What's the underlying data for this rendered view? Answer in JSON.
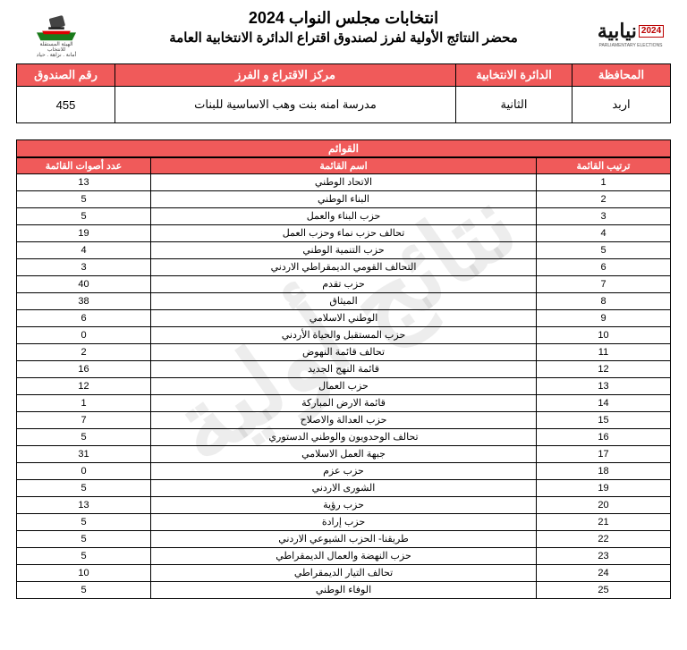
{
  "watermark": "نتائج أولية",
  "header": {
    "title_line1": "انتخابات مجلس النواب 2024",
    "title_line2": "محضر النتائج الأولية لفرز لصندوق اقتراع الدائرة الانتخابية العامة",
    "left_logo_lines": [
      "الهيئة المستقلة",
      "للانتخاب",
      "أمانة . نزاهة . حياد"
    ],
    "right_logo_word": "نيابية",
    "right_logo_year": "2024",
    "right_logo_sub": "PARLIAMENTARY ELECTIONS"
  },
  "info": {
    "headers": {
      "governorate": "المحافظة",
      "district": "الدائرة الانتخابية",
      "center": "مركز الاقتراع و الفرز",
      "box": "رقم الصندوق"
    },
    "values": {
      "governorate": "اربد",
      "district": "الثانية",
      "center": "مدرسة امنه بنت وهب الاساسية للبنات",
      "box": "455"
    }
  },
  "lists": {
    "section_title": "القوائم",
    "headers": {
      "order": "ترتيب القائمة",
      "name": "اسم القائمة",
      "votes": "عدد أصوات القائمة"
    },
    "rows": [
      {
        "order": 1,
        "name": "الاتحاد الوطني",
        "votes": 13
      },
      {
        "order": 2,
        "name": "البناء الوطني",
        "votes": 5
      },
      {
        "order": 3,
        "name": "حزب البناء والعمل",
        "votes": 5
      },
      {
        "order": 4,
        "name": "تحالف حزب نماء وحزب العمل",
        "votes": 19
      },
      {
        "order": 5,
        "name": "حزب التنمية الوطني",
        "votes": 4
      },
      {
        "order": 6,
        "name": "التحالف القومي الديمقراطي الاردني",
        "votes": 3
      },
      {
        "order": 7,
        "name": "حزب تقدم",
        "votes": 40
      },
      {
        "order": 8,
        "name": "الميثاق",
        "votes": 38
      },
      {
        "order": 9,
        "name": "الوطني الاسلامي",
        "votes": 6
      },
      {
        "order": 10,
        "name": "حزب المستقبل والحياة الأردني",
        "votes": 0
      },
      {
        "order": 11,
        "name": "تحالف قائمة النهوض",
        "votes": 2
      },
      {
        "order": 12,
        "name": "قائمة النهج الجديد",
        "votes": 16
      },
      {
        "order": 13,
        "name": "حزب العمال",
        "votes": 12
      },
      {
        "order": 14,
        "name": "قائمة الارض المباركة",
        "votes": 1
      },
      {
        "order": 15,
        "name": "حزب العدالة والاصلاح",
        "votes": 7
      },
      {
        "order": 16,
        "name": "تحالف الوحدويون والوطني الدستوري",
        "votes": 5
      },
      {
        "order": 17,
        "name": "جبهة العمل الاسلامي",
        "votes": 31
      },
      {
        "order": 18,
        "name": "حزب عزم",
        "votes": 0
      },
      {
        "order": 19,
        "name": "الشورى الاردني",
        "votes": 5
      },
      {
        "order": 20,
        "name": "حزب رؤية",
        "votes": 13
      },
      {
        "order": 21,
        "name": "حزب إرادة",
        "votes": 5
      },
      {
        "order": 22,
        "name": "طريقنا- الحزب الشيوعي الاردني",
        "votes": 5
      },
      {
        "order": 23,
        "name": "حزب النهضة والعمال الديمقراطي",
        "votes": 5
      },
      {
        "order": 24,
        "name": "تحالف التيار الديمقراطي",
        "votes": 10
      },
      {
        "order": 25,
        "name": "الوفاء الوطني",
        "votes": 5
      }
    ]
  },
  "colors": {
    "header_bg": "#f05a5a",
    "header_fg": "#ffffff",
    "border": "#000000"
  }
}
